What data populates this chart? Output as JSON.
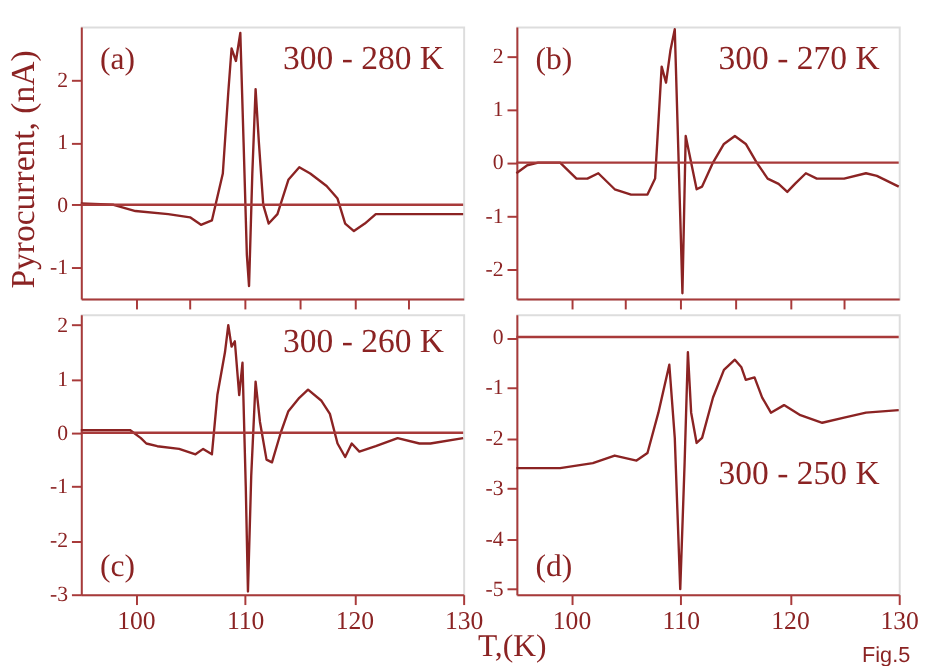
{
  "chart_data": [
    {
      "type": "line",
      "ylabel": "Pyrocurrent, (nA)",
      "annotations": [
        "(a)",
        "300 - 280 K"
      ],
      "xlim": [
        95,
        130
      ],
      "xticks": [
        {
          "value": 100,
          "label": null
        },
        {
          "value": 105,
          "label": null
        },
        {
          "value": 110,
          "label": null
        },
        {
          "value": 115,
          "label": null
        },
        {
          "value": 120,
          "label": null
        },
        {
          "value": 125,
          "label": null
        }
      ],
      "ylim": [
        -1.5,
        2.85
      ],
      "yticks": [
        -1,
        0,
        1,
        2
      ],
      "tick_labels": "y",
      "grid": false,
      "legend": false,
      "ref_lines": [
        {
          "axis": "y",
          "value": 0,
          "color": "#a83a3a"
        }
      ],
      "series": [
        {
          "color": "#8b2323",
          "x": [
            95,
            98,
            100,
            103,
            105,
            106,
            107,
            108,
            108.5,
            108.8,
            109.2,
            109.6,
            109.9,
            110.2,
            110.4,
            110.7,
            111.0,
            111.3,
            111.7,
            112.2,
            113,
            114,
            115,
            116,
            117.5,
            118.5,
            119.2,
            120,
            121,
            122,
            125,
            130
          ],
          "values": [
            0.02,
            0.0,
            -0.1,
            -0.15,
            -0.2,
            -0.32,
            -0.25,
            0.5,
            1.8,
            2.5,
            2.3,
            2.75,
            1.0,
            -0.8,
            -1.3,
            0.5,
            1.85,
            1.0,
            0.0,
            -0.3,
            -0.15,
            0.4,
            0.6,
            0.5,
            0.3,
            0.1,
            -0.3,
            -0.42,
            -0.3,
            -0.15,
            -0.15,
            -0.15
          ]
        }
      ]
    },
    {
      "type": "line",
      "annotations": [
        "(b)",
        "300 - 270 K"
      ],
      "xlim": [
        95,
        130
      ],
      "xticks": [
        {
          "value": 100,
          "label": null
        },
        {
          "value": 105,
          "label": null
        },
        {
          "value": 110,
          "label": null
        },
        {
          "value": 115,
          "label": null
        },
        {
          "value": 120,
          "label": null
        },
        {
          "value": 125,
          "label": null
        }
      ],
      "ylim": [
        -2.55,
        2.55
      ],
      "yticks": [
        -2,
        -1,
        0,
        1,
        2
      ],
      "tick_labels": "y",
      "grid": false,
      "legend": false,
      "ref_lines": [
        {
          "axis": "y",
          "value": 0,
          "color": "#a83a3a"
        }
      ],
      "series": [
        {
          "color": "#8b2323",
          "x": [
            95,
            96,
            97,
            99,
            100.5,
            101.5,
            102.5,
            104,
            105.5,
            107,
            107.7,
            108.3,
            108.7,
            109.1,
            109.5,
            110,
            110.2,
            110.5,
            110.8,
            111.5,
            112,
            113,
            114,
            115,
            116,
            117,
            118,
            119,
            119.8,
            120.5,
            121.5,
            122.5,
            125,
            127,
            128,
            130
          ],
          "values": [
            -0.2,
            -0.05,
            0,
            0,
            -0.3,
            -0.3,
            -0.2,
            -0.5,
            -0.6,
            -0.6,
            -0.3,
            1.8,
            1.5,
            2.1,
            2.5,
            -1.0,
            -2.45,
            0.5,
            0.2,
            -0.5,
            -0.45,
            0,
            0.35,
            0.5,
            0.35,
            0,
            -0.3,
            -0.4,
            -0.55,
            -0.4,
            -0.2,
            -0.3,
            -0.3,
            -0.2,
            -0.25,
            -0.45
          ]
        }
      ]
    },
    {
      "type": "line",
      "annotations": [
        "(c)",
        "300 - 260 K"
      ],
      "xlim": [
        95,
        130
      ],
      "xticks": [
        100,
        110,
        120,
        130
      ],
      "ylim": [
        -3,
        2.2
      ],
      "yticks": [
        -3,
        -2,
        -1,
        0,
        1,
        2
      ],
      "grid": false,
      "legend": false,
      "ref_lines": [
        {
          "axis": "y",
          "value": 0,
          "color": "#a83a3a"
        }
      ],
      "series": [
        {
          "color": "#8b2323",
          "x": [
            95,
            99.5,
            100.5,
            101,
            102,
            104,
            105.5,
            106.2,
            107,
            107.5,
            108.2,
            108.5,
            108.8,
            109.1,
            109.5,
            109.8,
            110.1,
            110.3,
            110.6,
            111,
            111.4,
            112,
            112.5,
            113.3,
            114,
            115,
            115.8,
            117,
            117.8,
            118.5,
            119.2,
            119.8,
            120.5,
            122,
            124,
            126,
            127,
            130
          ],
          "values": [
            0.05,
            0.05,
            -0.1,
            -0.2,
            -0.25,
            -0.3,
            -0.4,
            -0.3,
            -0.4,
            0.7,
            1.5,
            2.0,
            1.6,
            1.7,
            0.7,
            1.3,
            -1.0,
            -2.95,
            -0.8,
            0.95,
            0.2,
            -0.5,
            -0.55,
            0,
            0.4,
            0.65,
            0.8,
            0.6,
            0.35,
            -0.2,
            -0.45,
            -0.2,
            -0.35,
            -0.25,
            -0.1,
            -0.2,
            -0.2,
            -0.1
          ]
        }
      ]
    },
    {
      "type": "line",
      "xlabel": "T,(K)",
      "annotations": [
        "(d)",
        "300 - 250 K",
        "Fig.5"
      ],
      "xlim": [
        95,
        130
      ],
      "xticks": [
        100,
        110,
        120,
        130
      ],
      "ylim": [
        -5.1,
        0.45
      ],
      "yticks": [
        -5,
        -4,
        -3,
        -2,
        -1,
        0
      ],
      "grid": false,
      "legend": false,
      "ref_lines": [
        {
          "axis": "y",
          "value": 0,
          "color": "#a83a3a"
        }
      ],
      "series": [
        {
          "color": "#8b2323",
          "x": [
            95,
            99,
            102,
            104,
            106,
            107,
            108,
            109,
            109.5,
            110,
            110.4,
            110.7,
            111,
            111.5,
            112,
            113,
            114,
            115,
            115.6,
            116,
            116.8,
            117.5,
            118.3,
            119.5,
            121,
            123,
            125,
            127,
            130
          ],
          "values": [
            -2.6,
            -2.6,
            -2.5,
            -2.35,
            -2.45,
            -2.3,
            -1.5,
            -0.55,
            -2.0,
            -5.0,
            -2.5,
            -0.3,
            -1.5,
            -2.1,
            -2.0,
            -1.2,
            -0.65,
            -0.45,
            -0.6,
            -0.85,
            -0.8,
            -1.2,
            -1.5,
            -1.35,
            -1.55,
            -1.7,
            -1.6,
            -1.5,
            -1.45
          ]
        }
      ]
    }
  ]
}
